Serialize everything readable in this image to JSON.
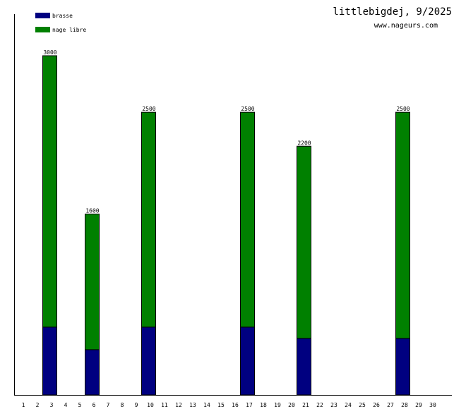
{
  "chart_data": {
    "type": "bar",
    "stacked": true,
    "title": "littlebigdej, 9/2025",
    "subtitle": "www.nageurs.com",
    "xlabel": "",
    "ylabel": "",
    "categories": [
      "1",
      "2",
      "3",
      "4",
      "5",
      "6",
      "7",
      "8",
      "9",
      "10",
      "11",
      "12",
      "13",
      "14",
      "15",
      "16",
      "17",
      "18",
      "19",
      "20",
      "21",
      "22",
      "23",
      "24",
      "25",
      "26",
      "27",
      "28",
      "29",
      "30"
    ],
    "series": [
      {
        "name": "brasse",
        "color": "#000080",
        "values": [
          0,
          0,
          600,
          0,
          0,
          400,
          0,
          0,
          0,
          600,
          0,
          0,
          0,
          0,
          0,
          0,
          600,
          0,
          0,
          0,
          500,
          0,
          0,
          0,
          0,
          0,
          0,
          500,
          0,
          0
        ]
      },
      {
        "name": "nage libre",
        "color": "#008000",
        "values": [
          0,
          0,
          2400,
          0,
          0,
          1200,
          0,
          0,
          0,
          1900,
          0,
          0,
          0,
          0,
          0,
          0,
          1900,
          0,
          0,
          0,
          1700,
          0,
          0,
          0,
          0,
          0,
          0,
          2000,
          0,
          0
        ]
      }
    ],
    "totals": [
      0,
      0,
      3000,
      0,
      0,
      1600,
      0,
      0,
      0,
      2500,
      0,
      0,
      0,
      0,
      0,
      0,
      2500,
      0,
      0,
      0,
      2200,
      0,
      0,
      0,
      0,
      0,
      0,
      2500,
      0,
      0
    ],
    "ylim": [
      0,
      3000
    ],
    "grid": false,
    "legend": "top-left"
  }
}
